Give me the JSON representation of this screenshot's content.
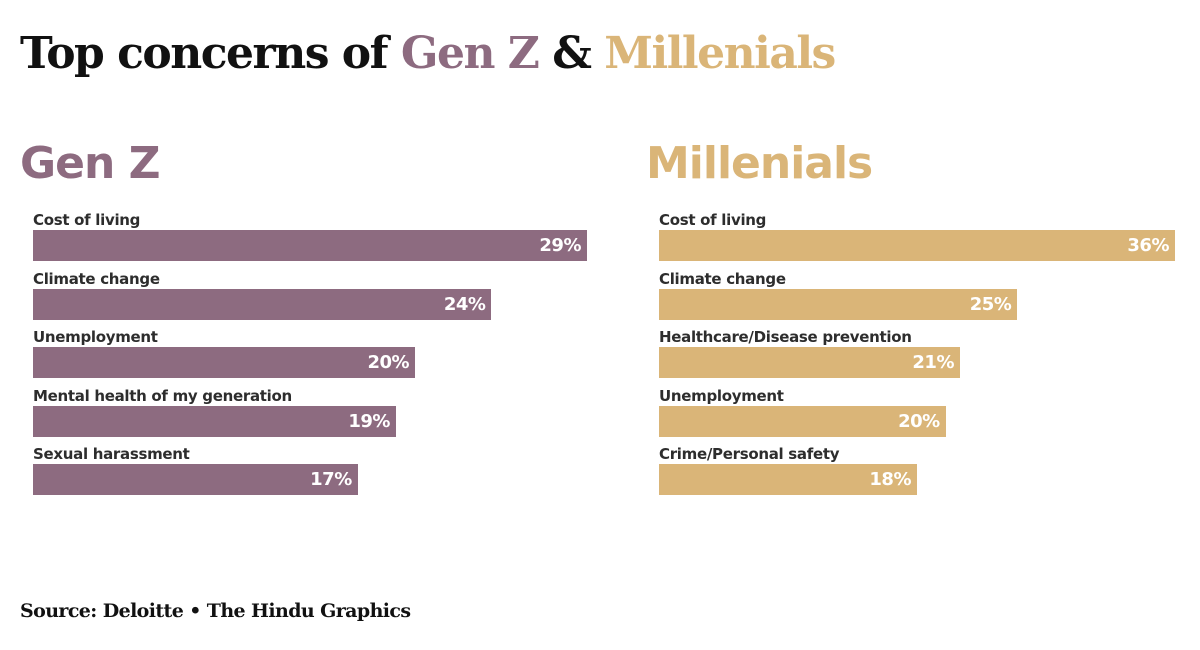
{
  "title": {
    "prefix": "Top concerns of ",
    "genz": "Gen Z",
    "amp": " & ",
    "millennials": "Millenials"
  },
  "colors": {
    "genz": "#8d6b80",
    "millennials": "#dab578",
    "text": "#111111"
  },
  "source": "Source: Deloitte • The Hindu Graphics",
  "chart_data": [
    {
      "type": "bar",
      "orientation": "horizontal",
      "title": "Gen Z",
      "categories": [
        "Cost of living",
        "Climate change",
        "Unemployment",
        "Mental health of my generation",
        "Sexual harassment"
      ],
      "values": [
        29,
        24,
        20,
        19,
        17
      ],
      "value_labels": [
        "29%",
        "24%",
        "20%",
        "19%",
        "17%"
      ],
      "unit": "%",
      "xlim": [
        0,
        29
      ],
      "grid": false,
      "legend": "none",
      "color": "#8d6b80"
    },
    {
      "type": "bar",
      "orientation": "horizontal",
      "title": "Millenials",
      "categories": [
        "Cost of living",
        "Climate change",
        "Healthcare/Disease prevention",
        "Unemployment",
        "Crime/Personal safety"
      ],
      "values": [
        36,
        25,
        21,
        20,
        18
      ],
      "value_labels": [
        "36%",
        "25%",
        "21%",
        "20%",
        "18%"
      ],
      "unit": "%",
      "xlim": [
        0,
        36
      ],
      "grid": false,
      "legend": "none",
      "color": "#dab578"
    }
  ]
}
